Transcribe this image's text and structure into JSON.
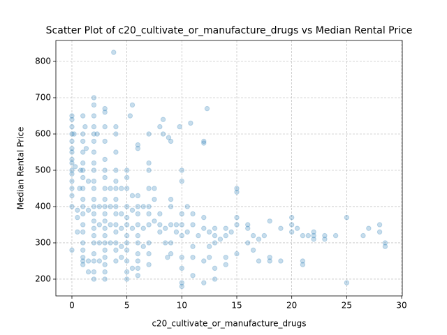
{
  "chart_data": {
    "type": "scatter",
    "title": "Scatter Plot of c20_cultivate_or_manufacture_drugs vs Median Rental Price",
    "x_label": "c20_cultivate_or_manufacture_drugs",
    "y_label": "Median Rental Price",
    "xlim": [
      -1.46,
      30.06
    ],
    "ylim": [
      153.8,
      857.7
    ],
    "xticks": [
      0,
      5,
      10,
      15,
      20,
      25,
      30
    ],
    "yticks": [
      200,
      300,
      400,
      500,
      600,
      700,
      800
    ],
    "grid": true,
    "color": "#1f77b4",
    "opacity": 0.25,
    "x": [
      0,
      0,
      0,
      0,
      0,
      0,
      0,
      0,
      0,
      0,
      0,
      0,
      0,
      0,
      0,
      0,
      0.2,
      0.3,
      0.5,
      0.5,
      0.5,
      0.7,
      0.8,
      1,
      1,
      1,
      1,
      1,
      1,
      1,
      1,
      1,
      1,
      1,
      1,
      1,
      1,
      1,
      1,
      1,
      1,
      1.2,
      1.3,
      1.5,
      1.5,
      1.5,
      1.5,
      2,
      2,
      2,
      2,
      2,
      2,
      2,
      2,
      2,
      2,
      2,
      2,
      2,
      2,
      2,
      2,
      2,
      2,
      2,
      2,
      2,
      2,
      2.3,
      2.5,
      2.5,
      2.5,
      2.5,
      3,
      3,
      3,
      3,
      3,
      3,
      3,
      3,
      3,
      3,
      3,
      3,
      3,
      3,
      3,
      3,
      3,
      3,
      3,
      3,
      3.5,
      3.5,
      3.5,
      3.5,
      3.8,
      4,
      4,
      4,
      4,
      4,
      4,
      4,
      4,
      4,
      4,
      4,
      4,
      4,
      4,
      4.5,
      4.5,
      4.5,
      4.5,
      4.5,
      5,
      5,
      5,
      5,
      5,
      5,
      5,
      5,
      5,
      5,
      5,
      5,
      5.3,
      5.5,
      5.5,
      5.5,
      5.5,
      5.5,
      6,
      6,
      6,
      6,
      6,
      6,
      6,
      6,
      6,
      6,
      6,
      6,
      6.5,
      6.5,
      6.5,
      7,
      7,
      7,
      7,
      7,
      7,
      7,
      7,
      7,
      7,
      7.5,
      7.5,
      7.5,
      8,
      8,
      8,
      8,
      8.3,
      8.3,
      8.5,
      8.5,
      8.7,
      8.8,
      9,
      9,
      9,
      9,
      9,
      9,
      9.5,
      9.5,
      9.8,
      10,
      10,
      10,
      10,
      10,
      10,
      10,
      10,
      10,
      10.5,
      10.5,
      10.8,
      11,
      11,
      11,
      11,
      11,
      11.5,
      12,
      12,
      12,
      12,
      12,
      12,
      12.3,
      12.5,
      12.5,
      12.5,
      13,
      13,
      13,
      13,
      13,
      13.5,
      14,
      14,
      14,
      14,
      14.5,
      15,
      15,
      15,
      15,
      15,
      16,
      16,
      16,
      16.5,
      16.5,
      17,
      17,
      17.5,
      18,
      18,
      18,
      19,
      19,
      20,
      20,
      20,
      20.5,
      21,
      21,
      21,
      21.5,
      22,
      22,
      22,
      23,
      23,
      24,
      25,
      25,
      26.5,
      27,
      28,
      28,
      28.5,
      28.5
    ],
    "values": [
      650,
      640,
      620,
      600,
      580,
      560,
      550,
      530,
      520,
      500,
      490,
      470,
      450,
      430,
      400,
      280,
      600,
      510,
      390,
      370,
      330,
      450,
      500,
      650,
      600,
      580,
      550,
      520,
      500,
      480,
      450,
      420,
      400,
      380,
      350,
      330,
      300,
      280,
      260,
      250,
      240,
      620,
      560,
      470,
      390,
      250,
      220,
      700,
      680,
      650,
      620,
      600,
      580,
      550,
      520,
      500,
      470,
      450,
      420,
      400,
      380,
      360,
      340,
      320,
      300,
      270,
      250,
      220,
      200,
      600,
      400,
      350,
      300,
      250,
      670,
      660,
      620,
      580,
      530,
      500,
      480,
      450,
      420,
      400,
      380,
      360,
      340,
      320,
      300,
      280,
      260,
      240,
      220,
      200,
      450,
      400,
      350,
      300,
      825,
      620,
      600,
      550,
      500,
      470,
      450,
      420,
      400,
      380,
      350,
      330,
      300,
      280,
      250,
      450,
      380,
      340,
      290,
      260,
      500,
      480,
      450,
      400,
      370,
      350,
      320,
      300,
      280,
      250,
      220,
      200,
      650,
      680,
      430,
      390,
      340,
      230,
      570,
      560,
      430,
      400,
      380,
      350,
      320,
      300,
      270,
      250,
      230,
      210,
      400,
      340,
      290,
      600,
      520,
      500,
      450,
      400,
      380,
      350,
      300,
      270,
      240,
      450,
      420,
      360,
      620,
      350,
      380,
      330,
      640,
      600,
      340,
      300,
      260,
      590,
      580,
      420,
      400,
      350,
      300,
      270,
      350,
      330,
      620,
      500,
      470,
      380,
      350,
      320,
      260,
      230,
      190,
      180,
      400,
      330,
      630,
      380,
      350,
      290,
      260,
      210,
      320,
      580,
      575,
      370,
      340,
      250,
      190,
      670,
      330,
      290,
      260,
      340,
      320,
      300,
      230,
      200,
      310,
      340,
      320,
      260,
      240,
      330,
      440,
      450,
      370,
      350,
      270,
      350,
      340,
      300,
      320,
      280,
      250,
      310,
      320,
      360,
      260,
      250,
      340,
      250,
      350,
      330,
      370,
      340,
      320,
      250,
      240,
      320,
      330,
      320,
      310,
      320,
      310,
      320,
      370,
      190,
      320,
      340,
      350,
      330,
      300,
      290
    ]
  }
}
